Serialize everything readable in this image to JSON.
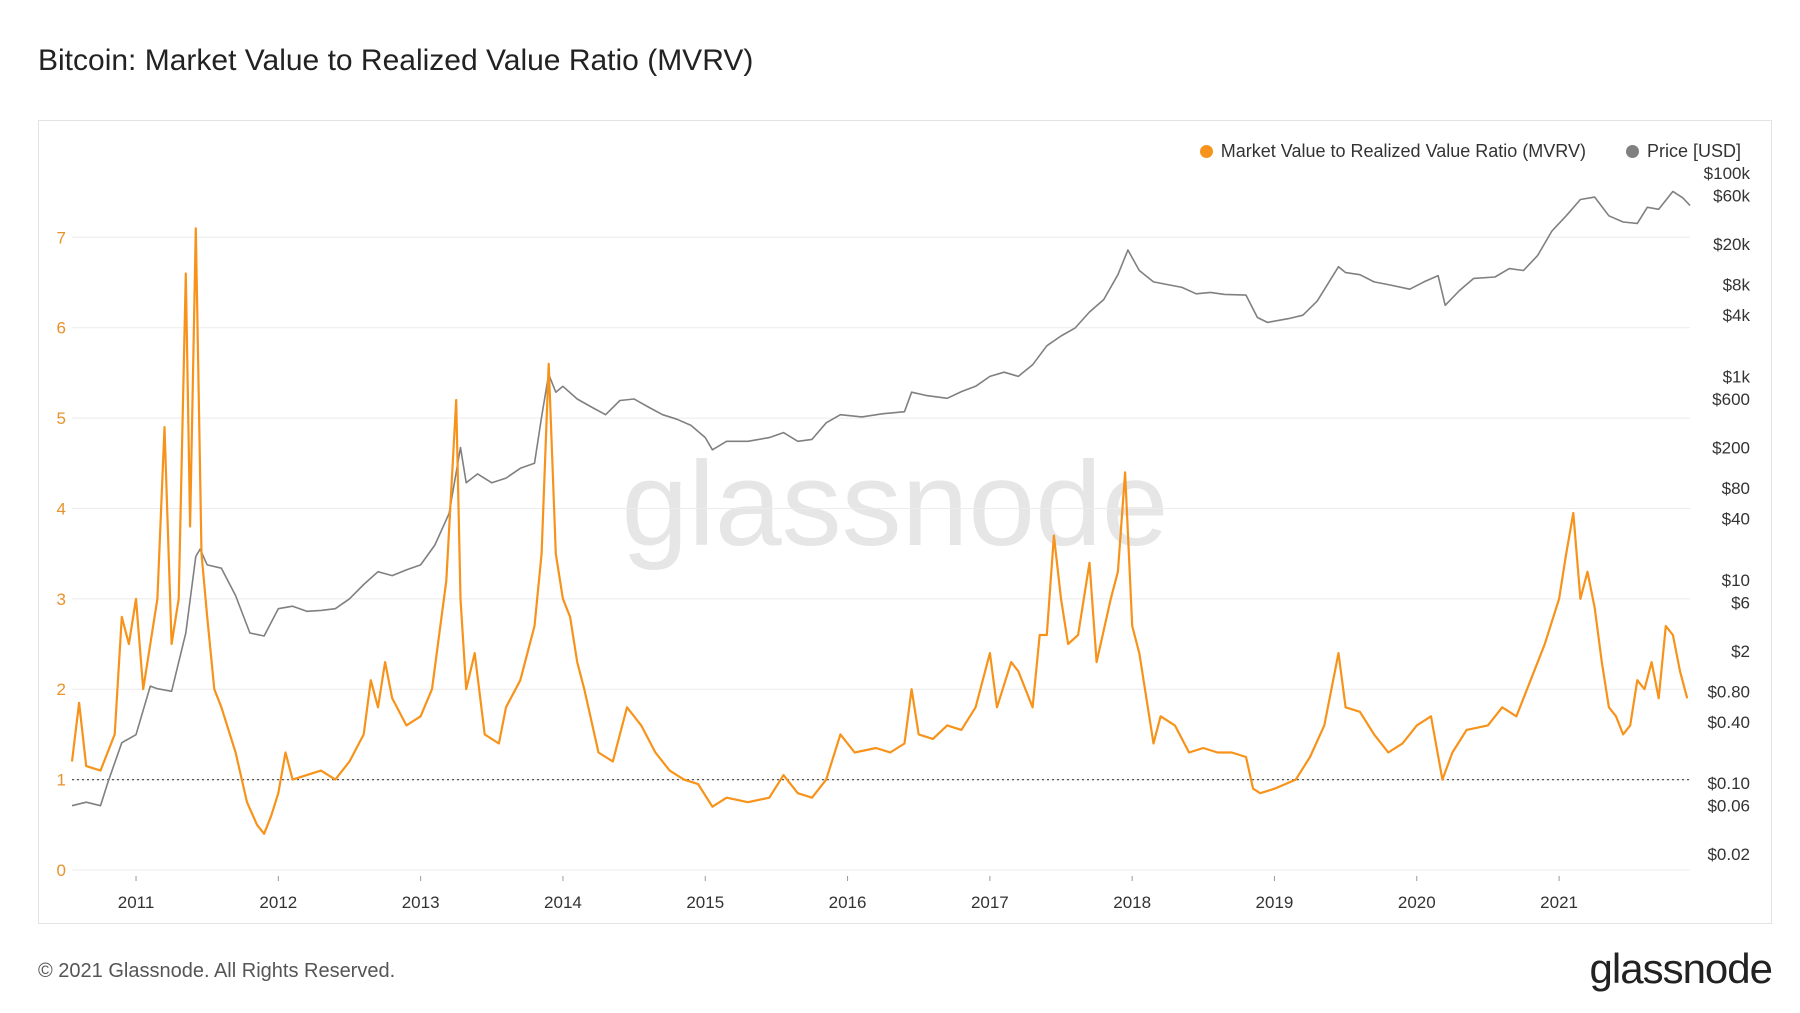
{
  "title": "Bitcoin: Market Value to Realized Value Ratio (MVRV)",
  "footer": {
    "copyright": "© 2021 Glassnode. All Rights Reserved.",
    "logo": "glassnode"
  },
  "watermark": "glassnode",
  "colors": {
    "mvrv": "#f7931a",
    "price": "#808080",
    "mvrv_axis": "#e8922a",
    "grid": "#ececec"
  },
  "chart_data": {
    "type": "line",
    "title": "Bitcoin: Market Value to Realized Value Ratio (MVRV)",
    "legend": [
      "Market Value to Realized Value Ratio (MVRV)",
      "Price [USD]"
    ],
    "legend_position": "top-right",
    "x_ticks": [
      "2011",
      "2012",
      "2013",
      "2014",
      "2015",
      "2016",
      "2017",
      "2018",
      "2019",
      "2020",
      "2021"
    ],
    "x_range": [
      2010.55,
      2021.92
    ],
    "y_left": {
      "label": "MVRV",
      "range": [
        0,
        7.8
      ],
      "ticks": [
        0,
        1,
        2,
        3,
        4,
        5,
        6,
        7
      ],
      "reference_line": 1
    },
    "y_right": {
      "label": "Price [USD]",
      "scale": "log",
      "range": [
        0.014,
        120000
      ],
      "ticks": [
        {
          "v": 100000,
          "t": "$100k"
        },
        {
          "v": 60000,
          "t": "$60k"
        },
        {
          "v": 20000,
          "t": "$20k"
        },
        {
          "v": 8000,
          "t": "$8k"
        },
        {
          "v": 4000,
          "t": "$4k"
        },
        {
          "v": 1000,
          "t": "$1k"
        },
        {
          "v": 600,
          "t": "$600"
        },
        {
          "v": 200,
          "t": "$200"
        },
        {
          "v": 80,
          "t": "$80"
        },
        {
          "v": 40,
          "t": "$40"
        },
        {
          "v": 10,
          "t": "$10"
        },
        {
          "v": 6,
          "t": "$6"
        },
        {
          "v": 2,
          "t": "$2"
        },
        {
          "v": 0.8,
          "t": "$0.80"
        },
        {
          "v": 0.4,
          "t": "$0.40"
        },
        {
          "v": 0.1,
          "t": "$0.10"
        },
        {
          "v": 0.06,
          "t": "$0.06"
        },
        {
          "v": 0.02,
          "t": "$0.02"
        }
      ]
    },
    "series": [
      {
        "name": "Market Value to Realized Value Ratio (MVRV)",
        "axis": "left",
        "points": [
          [
            2010.55,
            1.2
          ],
          [
            2010.6,
            1.85
          ],
          [
            2010.65,
            1.15
          ],
          [
            2010.75,
            1.1
          ],
          [
            2010.85,
            1.5
          ],
          [
            2010.9,
            2.8
          ],
          [
            2010.95,
            2.5
          ],
          [
            2011.0,
            3.0
          ],
          [
            2011.05,
            2.0
          ],
          [
            2011.1,
            2.5
          ],
          [
            2011.15,
            3.0
          ],
          [
            2011.2,
            4.9
          ],
          [
            2011.25,
            2.5
          ],
          [
            2011.3,
            3.0
          ],
          [
            2011.35,
            6.6
          ],
          [
            2011.38,
            3.8
          ],
          [
            2011.42,
            7.1
          ],
          [
            2011.46,
            3.5
          ],
          [
            2011.5,
            2.8
          ],
          [
            2011.55,
            2.0
          ],
          [
            2011.6,
            1.8
          ],
          [
            2011.7,
            1.3
          ],
          [
            2011.78,
            0.75
          ],
          [
            2011.85,
            0.5
          ],
          [
            2011.9,
            0.4
          ],
          [
            2011.95,
            0.6
          ],
          [
            2012.0,
            0.85
          ],
          [
            2012.05,
            1.3
          ],
          [
            2012.1,
            1.0
          ],
          [
            2012.2,
            1.05
          ],
          [
            2012.3,
            1.1
          ],
          [
            2012.4,
            1.0
          ],
          [
            2012.5,
            1.2
          ],
          [
            2012.6,
            1.5
          ],
          [
            2012.65,
            2.1
          ],
          [
            2012.7,
            1.8
          ],
          [
            2012.75,
            2.3
          ],
          [
            2012.8,
            1.9
          ],
          [
            2012.9,
            1.6
          ],
          [
            2013.0,
            1.7
          ],
          [
            2013.08,
            2.0
          ],
          [
            2013.18,
            3.2
          ],
          [
            2013.25,
            5.2
          ],
          [
            2013.28,
            3.0
          ],
          [
            2013.32,
            2.0
          ],
          [
            2013.38,
            2.4
          ],
          [
            2013.45,
            1.5
          ],
          [
            2013.55,
            1.4
          ],
          [
            2013.6,
            1.8
          ],
          [
            2013.7,
            2.1
          ],
          [
            2013.8,
            2.7
          ],
          [
            2013.85,
            3.5
          ],
          [
            2013.9,
            5.6
          ],
          [
            2013.95,
            3.5
          ],
          [
            2014.0,
            3.0
          ],
          [
            2014.05,
            2.8
          ],
          [
            2014.1,
            2.3
          ],
          [
            2014.15,
            2.0
          ],
          [
            2014.25,
            1.3
          ],
          [
            2014.35,
            1.2
          ],
          [
            2014.45,
            1.8
          ],
          [
            2014.55,
            1.6
          ],
          [
            2014.65,
            1.3
          ],
          [
            2014.75,
            1.1
          ],
          [
            2014.85,
            1.0
          ],
          [
            2014.95,
            0.95
          ],
          [
            2015.05,
            0.7
          ],
          [
            2015.15,
            0.8
          ],
          [
            2015.3,
            0.75
          ],
          [
            2015.45,
            0.8
          ],
          [
            2015.55,
            1.05
          ],
          [
            2015.65,
            0.85
          ],
          [
            2015.75,
            0.8
          ],
          [
            2015.85,
            1.0
          ],
          [
            2015.95,
            1.5
          ],
          [
            2016.05,
            1.3
          ],
          [
            2016.2,
            1.35
          ],
          [
            2016.3,
            1.3
          ],
          [
            2016.4,
            1.4
          ],
          [
            2016.45,
            2.0
          ],
          [
            2016.5,
            1.5
          ],
          [
            2016.6,
            1.45
          ],
          [
            2016.7,
            1.6
          ],
          [
            2016.8,
            1.55
          ],
          [
            2016.9,
            1.8
          ],
          [
            2017.0,
            2.4
          ],
          [
            2017.05,
            1.8
          ],
          [
            2017.15,
            2.3
          ],
          [
            2017.2,
            2.2
          ],
          [
            2017.3,
            1.8
          ],
          [
            2017.35,
            2.6
          ],
          [
            2017.4,
            2.6
          ],
          [
            2017.45,
            3.7
          ],
          [
            2017.5,
            3.0
          ],
          [
            2017.55,
            2.5
          ],
          [
            2017.62,
            2.6
          ],
          [
            2017.7,
            3.4
          ],
          [
            2017.75,
            2.3
          ],
          [
            2017.85,
            3.0
          ],
          [
            2017.9,
            3.3
          ],
          [
            2017.95,
            4.4
          ],
          [
            2018.0,
            2.7
          ],
          [
            2018.05,
            2.4
          ],
          [
            2018.1,
            1.9
          ],
          [
            2018.15,
            1.4
          ],
          [
            2018.2,
            1.7
          ],
          [
            2018.3,
            1.6
          ],
          [
            2018.4,
            1.3
          ],
          [
            2018.5,
            1.35
          ],
          [
            2018.6,
            1.3
          ],
          [
            2018.7,
            1.3
          ],
          [
            2018.8,
            1.25
          ],
          [
            2018.85,
            0.9
          ],
          [
            2018.9,
            0.85
          ],
          [
            2019.0,
            0.9
          ],
          [
            2019.15,
            1.0
          ],
          [
            2019.25,
            1.25
          ],
          [
            2019.35,
            1.6
          ],
          [
            2019.45,
            2.4
          ],
          [
            2019.5,
            1.8
          ],
          [
            2019.6,
            1.75
          ],
          [
            2019.7,
            1.5
          ],
          [
            2019.8,
            1.3
          ],
          [
            2019.9,
            1.4
          ],
          [
            2020.0,
            1.6
          ],
          [
            2020.1,
            1.7
          ],
          [
            2020.18,
            1.0
          ],
          [
            2020.25,
            1.3
          ],
          [
            2020.35,
            1.55
          ],
          [
            2020.5,
            1.6
          ],
          [
            2020.6,
            1.8
          ],
          [
            2020.7,
            1.7
          ],
          [
            2020.8,
            2.1
          ],
          [
            2020.9,
            2.5
          ],
          [
            2021.0,
            3.0
          ],
          [
            2021.05,
            3.5
          ],
          [
            2021.1,
            3.95
          ],
          [
            2021.15,
            3.0
          ],
          [
            2021.2,
            3.3
          ],
          [
            2021.25,
            2.9
          ],
          [
            2021.3,
            2.3
          ],
          [
            2021.35,
            1.8
          ],
          [
            2021.4,
            1.7
          ],
          [
            2021.45,
            1.5
          ],
          [
            2021.5,
            1.6
          ],
          [
            2021.55,
            2.1
          ],
          [
            2021.6,
            2.0
          ],
          [
            2021.65,
            2.3
          ],
          [
            2021.7,
            1.9
          ],
          [
            2021.75,
            2.7
          ],
          [
            2021.8,
            2.6
          ],
          [
            2021.85,
            2.2
          ],
          [
            2021.9,
            1.9
          ]
        ]
      },
      {
        "name": "Price [USD]",
        "axis": "right",
        "points": [
          [
            2010.55,
            0.06
          ],
          [
            2010.65,
            0.065
          ],
          [
            2010.75,
            0.06
          ],
          [
            2010.8,
            0.1
          ],
          [
            2010.9,
            0.25
          ],
          [
            2011.0,
            0.3
          ],
          [
            2011.1,
            0.9
          ],
          [
            2011.15,
            0.85
          ],
          [
            2011.25,
            0.8
          ],
          [
            2011.35,
            3.0
          ],
          [
            2011.42,
            17
          ],
          [
            2011.45,
            20
          ],
          [
            2011.5,
            14
          ],
          [
            2011.6,
            13
          ],
          [
            2011.7,
            7
          ],
          [
            2011.8,
            3
          ],
          [
            2011.9,
            2.8
          ],
          [
            2012.0,
            5.2
          ],
          [
            2012.1,
            5.5
          ],
          [
            2012.2,
            4.9
          ],
          [
            2012.3,
            5.0
          ],
          [
            2012.4,
            5.2
          ],
          [
            2012.5,
            6.5
          ],
          [
            2012.6,
            9
          ],
          [
            2012.7,
            12
          ],
          [
            2012.8,
            11
          ],
          [
            2012.9,
            12.5
          ],
          [
            2013.0,
            14
          ],
          [
            2013.1,
            22
          ],
          [
            2013.2,
            45
          ],
          [
            2013.28,
            200
          ],
          [
            2013.32,
            90
          ],
          [
            2013.4,
            110
          ],
          [
            2013.5,
            90
          ],
          [
            2013.6,
            100
          ],
          [
            2013.7,
            125
          ],
          [
            2013.8,
            140
          ],
          [
            2013.85,
            400
          ],
          [
            2013.9,
            1050
          ],
          [
            2013.95,
            700
          ],
          [
            2014.0,
            800
          ],
          [
            2014.1,
            600
          ],
          [
            2014.2,
            500
          ],
          [
            2014.3,
            420
          ],
          [
            2014.4,
            580
          ],
          [
            2014.5,
            600
          ],
          [
            2014.6,
            500
          ],
          [
            2014.7,
            420
          ],
          [
            2014.8,
            380
          ],
          [
            2014.9,
            330
          ],
          [
            2015.0,
            250
          ],
          [
            2015.05,
            190
          ],
          [
            2015.15,
            230
          ],
          [
            2015.3,
            230
          ],
          [
            2015.45,
            250
          ],
          [
            2015.55,
            280
          ],
          [
            2015.65,
            230
          ],
          [
            2015.75,
            240
          ],
          [
            2015.85,
            350
          ],
          [
            2015.95,
            420
          ],
          [
            2016.1,
            400
          ],
          [
            2016.25,
            430
          ],
          [
            2016.4,
            450
          ],
          [
            2016.45,
            700
          ],
          [
            2016.55,
            650
          ],
          [
            2016.7,
            610
          ],
          [
            2016.8,
            710
          ],
          [
            2016.9,
            800
          ],
          [
            2017.0,
            1000
          ],
          [
            2017.1,
            1100
          ],
          [
            2017.2,
            1000
          ],
          [
            2017.3,
            1300
          ],
          [
            2017.4,
            2000
          ],
          [
            2017.5,
            2500
          ],
          [
            2017.6,
            3000
          ],
          [
            2017.7,
            4300
          ],
          [
            2017.8,
            5700
          ],
          [
            2017.9,
            10000
          ],
          [
            2017.97,
            17500
          ],
          [
            2018.05,
            11000
          ],
          [
            2018.15,
            8500
          ],
          [
            2018.25,
            8000
          ],
          [
            2018.35,
            7500
          ],
          [
            2018.45,
            6500
          ],
          [
            2018.55,
            6700
          ],
          [
            2018.65,
            6400
          ],
          [
            2018.8,
            6300
          ],
          [
            2018.88,
            3800
          ],
          [
            2018.95,
            3400
          ],
          [
            2019.1,
            3700
          ],
          [
            2019.2,
            4000
          ],
          [
            2019.3,
            5500
          ],
          [
            2019.45,
            12000
          ],
          [
            2019.5,
            10500
          ],
          [
            2019.6,
            10000
          ],
          [
            2019.7,
            8500
          ],
          [
            2019.8,
            8000
          ],
          [
            2019.95,
            7200
          ],
          [
            2020.05,
            8500
          ],
          [
            2020.15,
            9800
          ],
          [
            2020.2,
            5000
          ],
          [
            2020.3,
            7000
          ],
          [
            2020.4,
            9200
          ],
          [
            2020.55,
            9500
          ],
          [
            2020.65,
            11500
          ],
          [
            2020.75,
            11000
          ],
          [
            2020.85,
            15500
          ],
          [
            2020.95,
            27000
          ],
          [
            2021.05,
            38000
          ],
          [
            2021.15,
            55000
          ],
          [
            2021.25,
            58000
          ],
          [
            2021.35,
            38000
          ],
          [
            2021.45,
            33000
          ],
          [
            2021.55,
            32000
          ],
          [
            2021.62,
            46000
          ],
          [
            2021.7,
            44000
          ],
          [
            2021.8,
            66000
          ],
          [
            2021.87,
            57000
          ],
          [
            2021.92,
            48000
          ]
        ]
      }
    ]
  }
}
